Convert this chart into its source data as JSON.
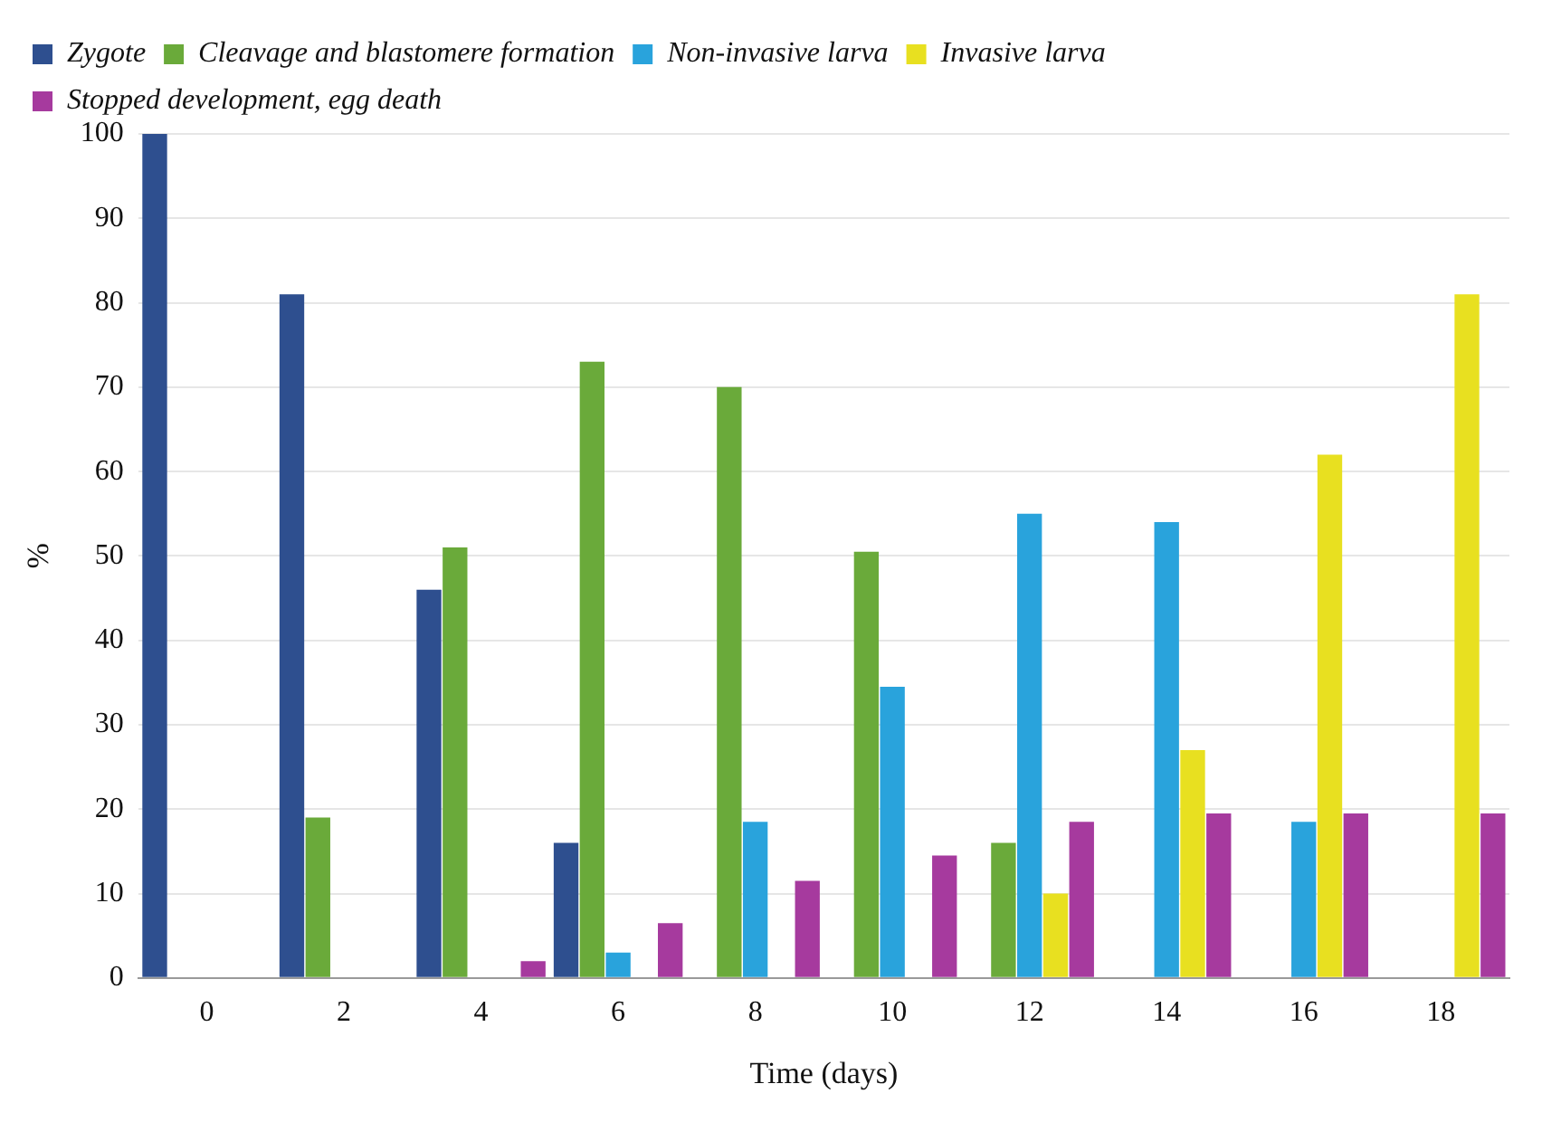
{
  "chart_data": {
    "type": "bar",
    "xlabel": "Time (days)",
    "ylabel": "%",
    "categories": [
      "0",
      "2",
      "4",
      "6",
      "8",
      "10",
      "12",
      "14",
      "16",
      "18"
    ],
    "series": [
      {
        "name": "Zygote",
        "color": "#2e4f8f",
        "values": [
          100,
          81,
          46,
          16,
          null,
          null,
          null,
          null,
          null,
          null
        ]
      },
      {
        "name": "Cleavage and blastomere formation",
        "color": "#6aaa3a",
        "values": [
          null,
          19,
          51,
          73,
          70,
          50.5,
          16,
          null,
          null,
          null
        ]
      },
      {
        "name": "Non-invasive larva",
        "color": "#29a3dc",
        "values": [
          null,
          null,
          null,
          3,
          18.5,
          34.5,
          55,
          54,
          18.5,
          null
        ]
      },
      {
        "name": "Invasive larva",
        "color": "#e8e020",
        "values": [
          null,
          null,
          null,
          null,
          null,
          null,
          10,
          27,
          62,
          81
        ]
      },
      {
        "name": "Stopped development, egg death",
        "color": "#a63a9e",
        "values": [
          null,
          null,
          2,
          6.5,
          11.5,
          14.5,
          18.5,
          19.5,
          19.5,
          19.5
        ]
      }
    ],
    "ylim": [
      0,
      100
    ],
    "yticks": [
      0,
      10,
      20,
      30,
      40,
      50,
      60,
      70,
      80,
      90,
      100
    ],
    "grid": "y",
    "legend": "top"
  }
}
